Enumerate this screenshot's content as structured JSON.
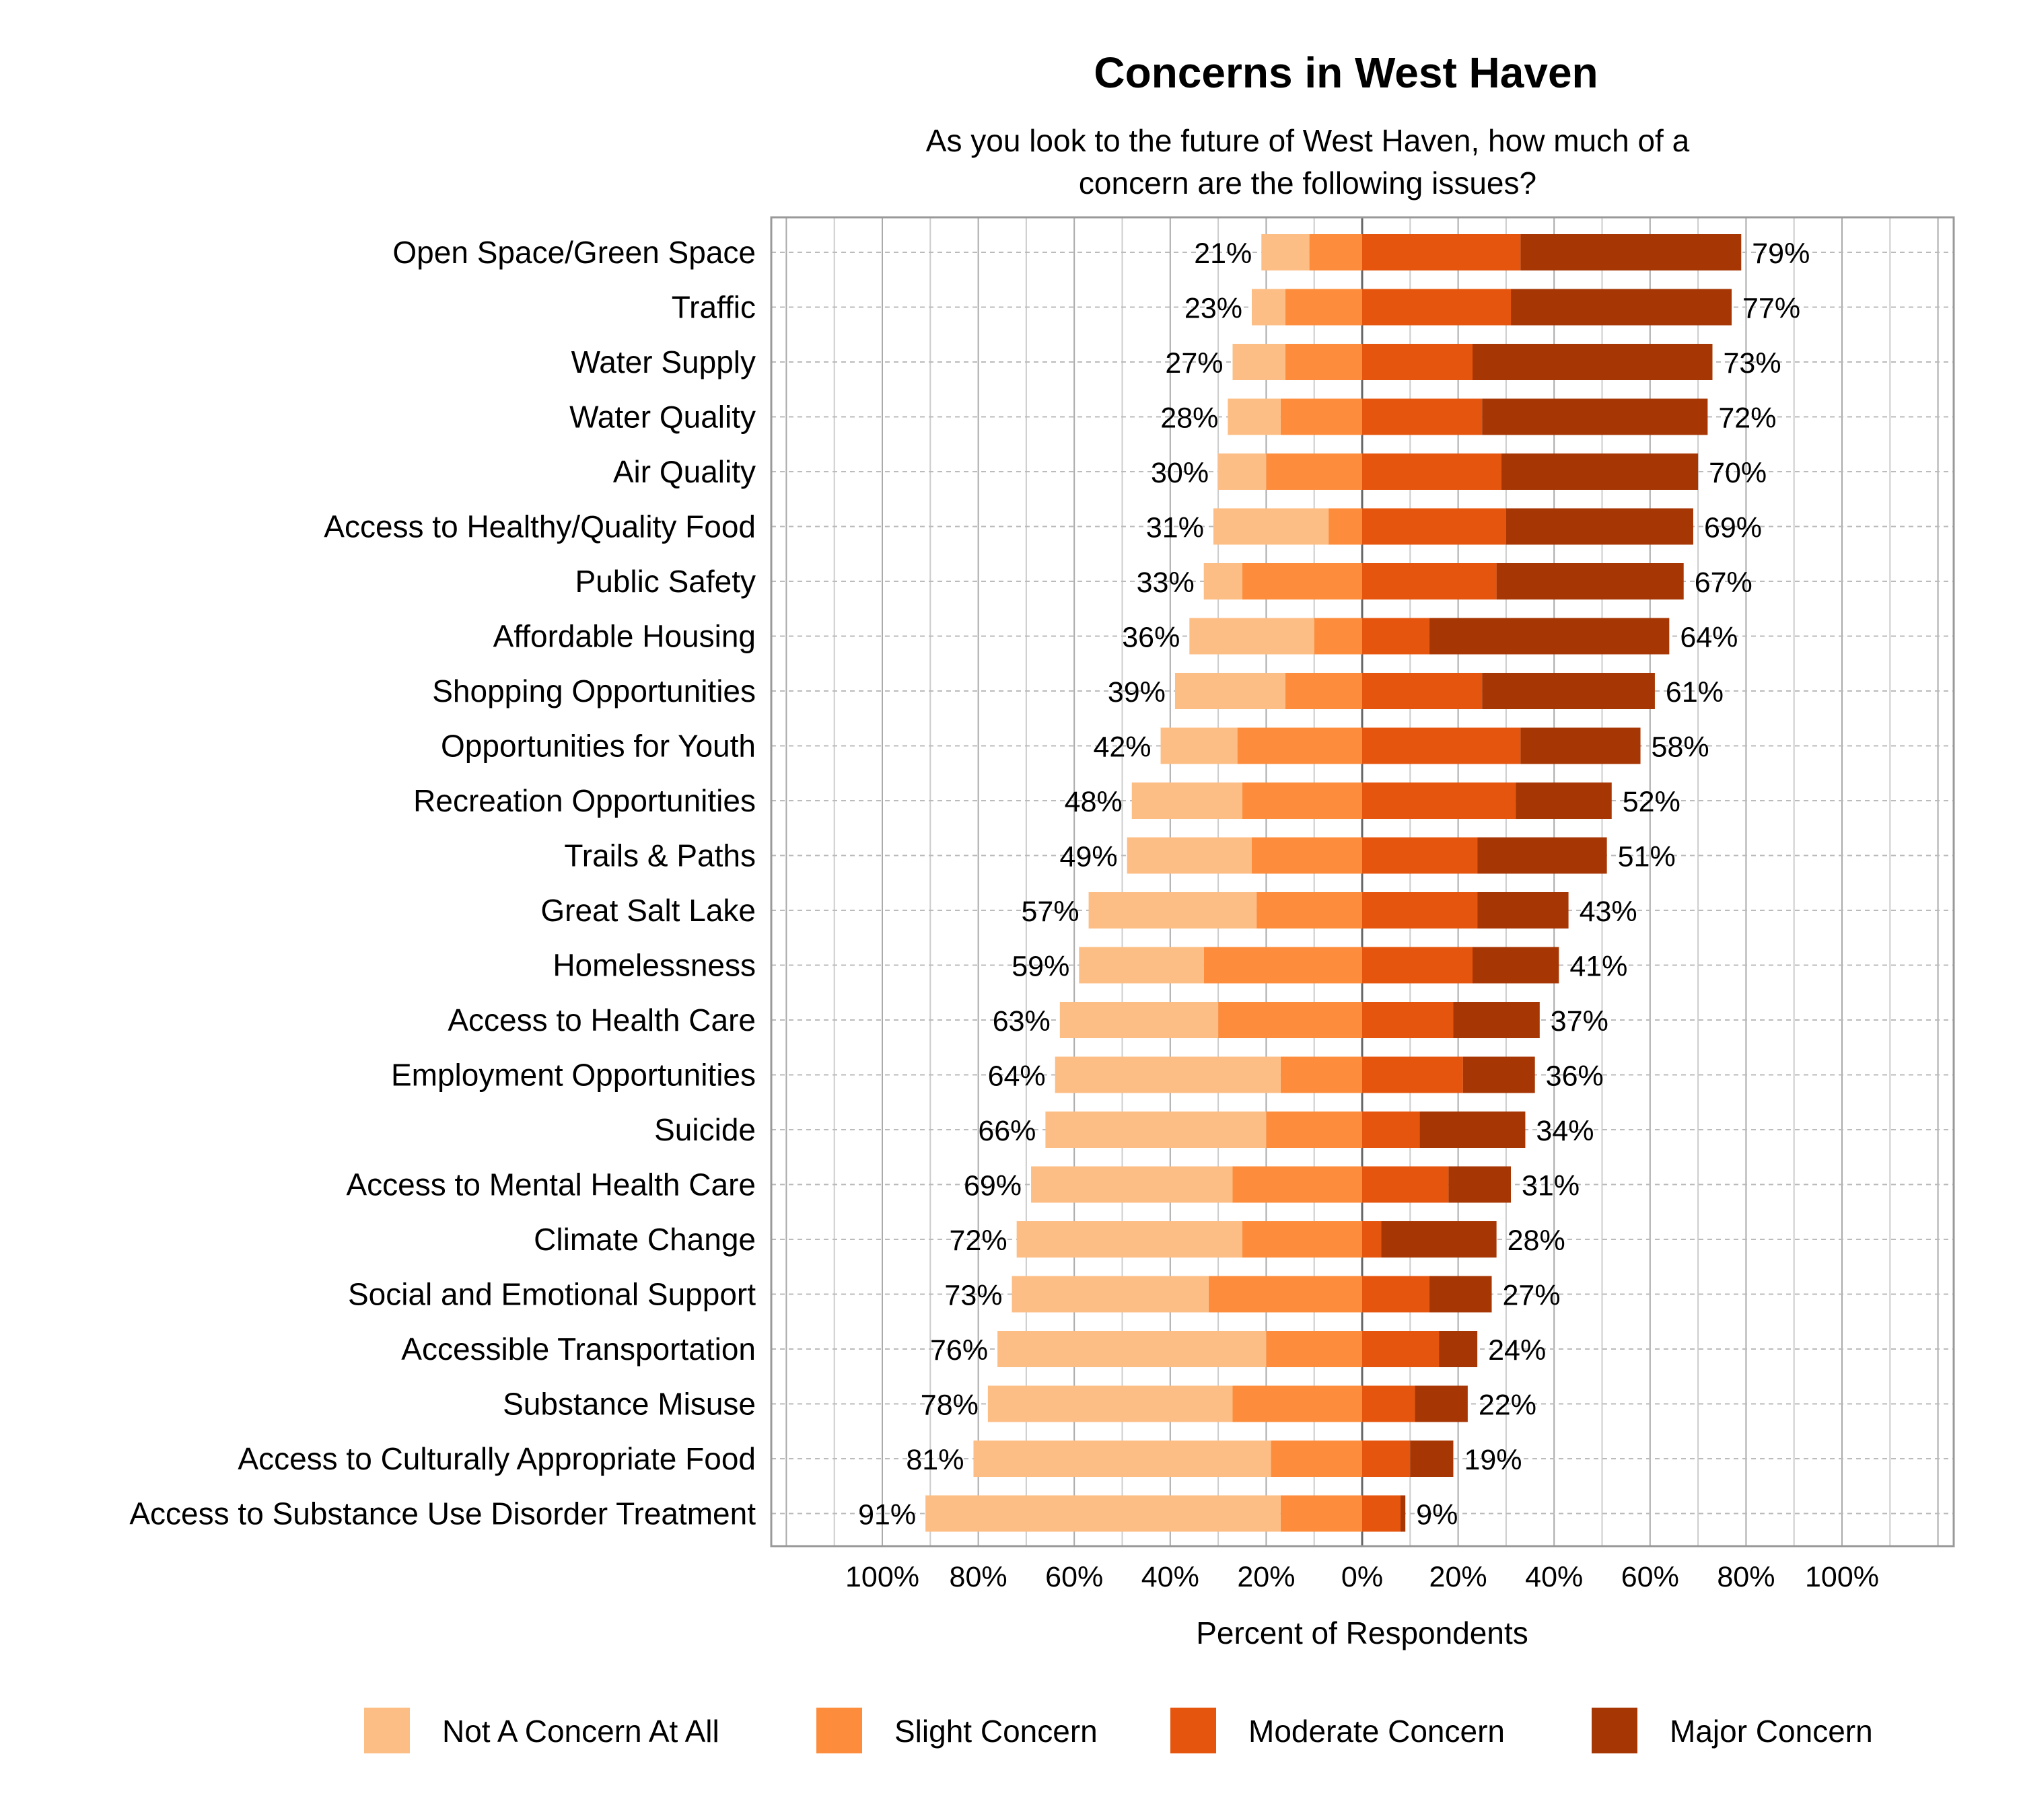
{
  "chart_data": {
    "type": "bar",
    "orientation": "horizontal",
    "stacked": "diverging",
    "title": "Concerns in West Haven",
    "subtitle": [
      "As you look to the future of West Haven, how much of a",
      "concern are the following issues?"
    ],
    "xlabel": "Percent of Respondents",
    "ylabel": "",
    "xlim": [
      -100,
      100
    ],
    "xticks": [
      "100%",
      "80%",
      "60%",
      "40%",
      "20%",
      "0%",
      "20%",
      "40%",
      "60%",
      "80%",
      "100%"
    ],
    "grid": true,
    "legend_position": "bottom",
    "categories": [
      "Open Space/Green Space",
      "Traffic",
      "Water Supply",
      "Water Quality",
      "Air Quality",
      "Access to Healthy/Quality Food",
      "Public Safety",
      "Affordable Housing",
      "Shopping Opportunities",
      "Opportunities for Youth",
      "Recreation Opportunities",
      "Trails & Paths",
      "Great Salt Lake",
      "Homelessness",
      "Access to Health Care",
      "Employment Opportunities",
      "Suicide",
      "Access to Mental Health Care",
      "Climate Change",
      "Social and Emotional Support",
      "Accessible Transportation",
      "Substance Misuse",
      "Access to Culturally Appropriate Food",
      "Access to Substance Use Disorder Treatment"
    ],
    "series": [
      {
        "name": "Not A Concern At All",
        "side": "left",
        "color": "#FDBE85",
        "values": [
          10,
          7,
          11,
          11,
          10,
          24,
          8,
          26,
          23,
          16,
          23,
          26,
          35,
          26,
          33,
          47,
          46,
          42,
          47,
          41,
          56,
          51,
          62,
          74
        ]
      },
      {
        "name": "Slight Concern",
        "side": "left",
        "color": "#FD8D3C",
        "values": [
          11,
          16,
          16,
          17,
          20,
          7,
          25,
          10,
          16,
          26,
          25,
          23,
          22,
          33,
          30,
          17,
          20,
          27,
          25,
          32,
          20,
          27,
          19,
          17
        ]
      },
      {
        "name": "Moderate Concern",
        "side": "right",
        "color": "#E6550D",
        "values": [
          33,
          31,
          23,
          25,
          29,
          30,
          28,
          14,
          25,
          33,
          32,
          24,
          24,
          23,
          19,
          21,
          12,
          18,
          4,
          14,
          16,
          11,
          10,
          8
        ]
      },
      {
        "name": "Major Concern",
        "side": "right",
        "color": "#A63603",
        "values": [
          46,
          46,
          50,
          47,
          41,
          39,
          39,
          50,
          36,
          25,
          20,
          27,
          19,
          18,
          18,
          15,
          22,
          13,
          24,
          13,
          8,
          11,
          9,
          1
        ]
      }
    ],
    "left_totals": [
      "21%",
      "23%",
      "27%",
      "28%",
      "30%",
      "31%",
      "33%",
      "36%",
      "39%",
      "42%",
      "48%",
      "49%",
      "57%",
      "59%",
      "63%",
      "64%",
      "66%",
      "69%",
      "72%",
      "73%",
      "76%",
      "78%",
      "81%",
      "91%"
    ],
    "right_totals": [
      "79%",
      "77%",
      "73%",
      "72%",
      "70%",
      "69%",
      "67%",
      "64%",
      "61%",
      "58%",
      "52%",
      "51%",
      "43%",
      "41%",
      "37%",
      "36%",
      "34%",
      "31%",
      "28%",
      "27%",
      "24%",
      "22%",
      "19%",
      "9%"
    ]
  }
}
